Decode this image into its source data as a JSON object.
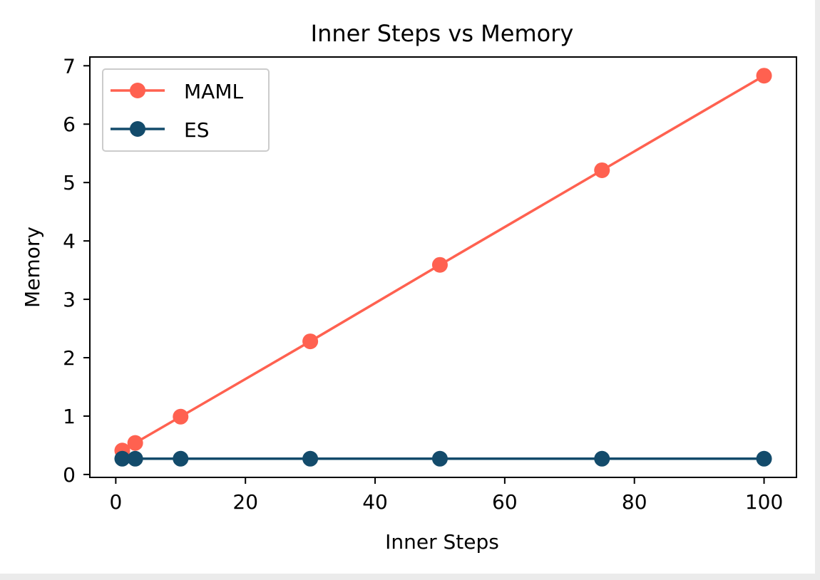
{
  "chart_data": {
    "type": "line",
    "title": "Inner Steps vs Memory",
    "xlabel": "Inner Steps",
    "ylabel": "Memory",
    "xlim": [
      -4,
      105
    ],
    "ylim": [
      -0.05,
      7.15
    ],
    "xticks": [
      0,
      20,
      40,
      60,
      80,
      100
    ],
    "yticks": [
      0,
      1,
      2,
      3,
      4,
      5,
      6,
      7
    ],
    "grid": false,
    "legend_position": "upper-left",
    "series": [
      {
        "name": "MAML",
        "color": "#ff6150",
        "marker": "circle",
        "x": [
          1,
          3,
          10,
          30,
          50,
          75,
          100
        ],
        "y": [
          0.41,
          0.54,
          0.99,
          2.28,
          3.59,
          5.21,
          6.83
        ]
      },
      {
        "name": "ES",
        "color": "#134b6b",
        "marker": "circle",
        "x": [
          1,
          3,
          10,
          30,
          50,
          75,
          100
        ],
        "y": [
          0.27,
          0.27,
          0.27,
          0.27,
          0.27,
          0.27,
          0.27
        ]
      }
    ]
  }
}
